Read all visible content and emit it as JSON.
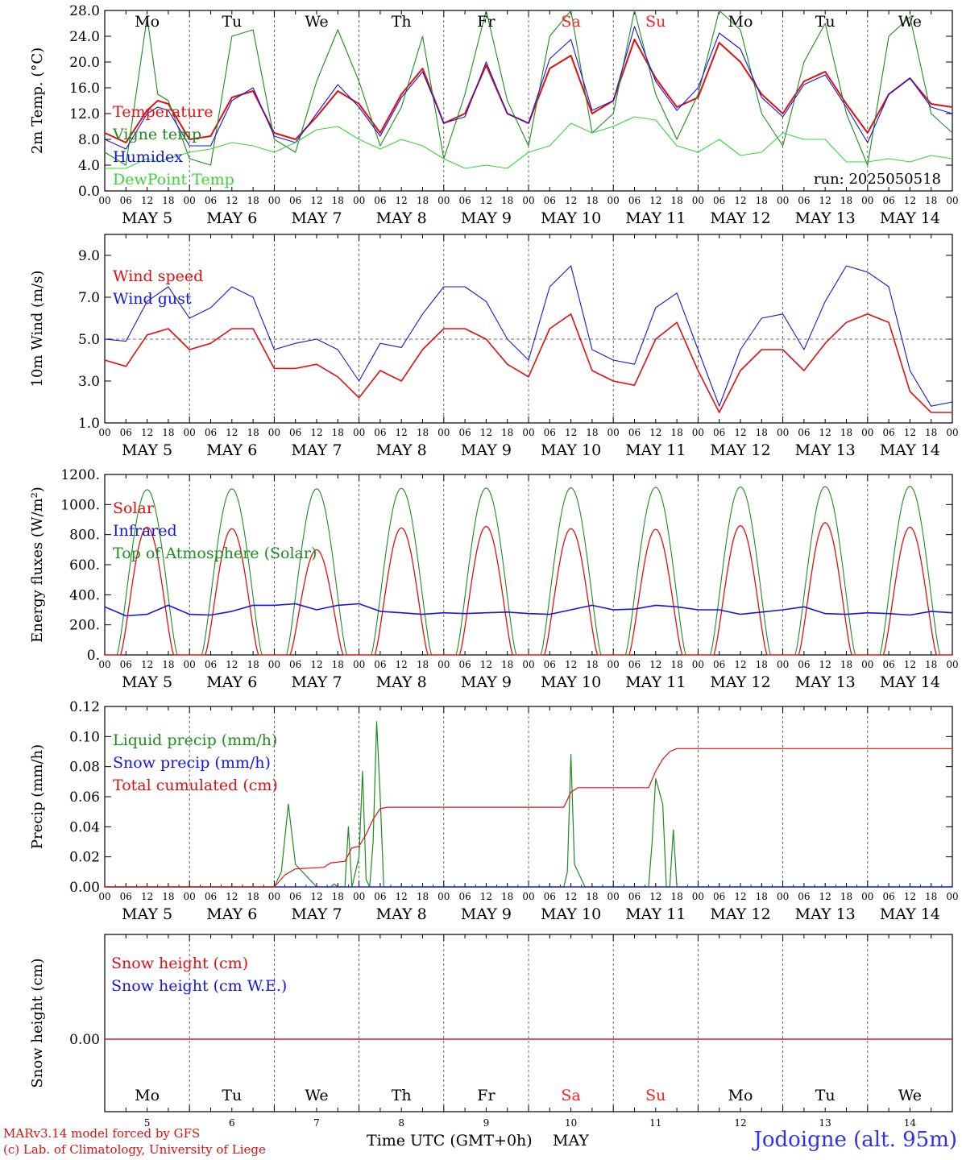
{
  "meta": {
    "run": "run: 2025050518",
    "days": [
      "Mo",
      "Tu",
      "We",
      "Th",
      "Fr",
      "Sa",
      "Su",
      "Mo",
      "Tu",
      "We"
    ],
    "weekend_color": "#ff2020",
    "hour_labels": [
      "00",
      "06",
      "12",
      "18"
    ],
    "date_labels": [
      "MAY  5",
      "MAY  6",
      "MAY  7",
      "MAY  8",
      "MAY  9",
      "MAY 10",
      "MAY 11",
      "MAY 12",
      "MAY 13",
      "MAY 14"
    ],
    "bottom_day_numbers": [
      "5",
      "6",
      "7",
      "8",
      "9",
      "10",
      "11",
      "12",
      "13",
      "14"
    ],
    "xlabel": "Time UTC (GMT+0h)",
    "xlabel_month": "MAY",
    "credit_line1": "MARv3.14 model forced by GFS",
    "credit_line2": "(c) Lab. of Climatology, University of Liege",
    "station": "Jodoigne (alt. 95m)"
  },
  "chart_data": [
    {
      "type": "line",
      "ylabel": "2m Temp. (°C)",
      "ylim": [
        0,
        28
      ],
      "yticks": [
        "0.0",
        "4.0",
        "8.0",
        "12.0",
        "16.0",
        "20.0",
        "24.0",
        "28.0"
      ],
      "x_hours": [
        0,
        6,
        12,
        15,
        18,
        24,
        30,
        36,
        42,
        48,
        54,
        60,
        66,
        72,
        78,
        84,
        90,
        96,
        102,
        108,
        114,
        120,
        126,
        132,
        138,
        144,
        150,
        156,
        162,
        168,
        174,
        180,
        186,
        192,
        198,
        204,
        210,
        216,
        222,
        228,
        234,
        240
      ],
      "series": [
        {
          "name": "Temperature",
          "color": "#e01010",
          "values": [
            9,
            7.5,
            12.5,
            14,
            13.5,
            8,
            8.5,
            14.5,
            15.5,
            9,
            8,
            11.5,
            15.5,
            13.5,
            9,
            15,
            19,
            10.5,
            12,
            19.5,
            12,
            10.5,
            19,
            21,
            12,
            14,
            23.5,
            17.5,
            13,
            14.5,
            23,
            20,
            15,
            12,
            17,
            18.5,
            13.5,
            9,
            15,
            17.5,
            13.5,
            13
          ]
        },
        {
          "name": "Vigne temp",
          "color": "#1e8c1e",
          "values": [
            6,
            4,
            27,
            15,
            14,
            5,
            4,
            24,
            25,
            8,
            6,
            17,
            25,
            17,
            7,
            13,
            24,
            5,
            15,
            28,
            14,
            7,
            24,
            28,
            9,
            12,
            30,
            15,
            8,
            15,
            29,
            25,
            12,
            7,
            20,
            26,
            12,
            4,
            24,
            27,
            12,
            9
          ]
        },
        {
          "name": "Humidex",
          "color": "#1515e0",
          "values": [
            8,
            6.5,
            12,
            13,
            12.5,
            7,
            7,
            14,
            16,
            8.5,
            7.5,
            12,
            16.5,
            13,
            8.5,
            14.5,
            18.5,
            10.5,
            11.5,
            20,
            12,
            10.5,
            20.5,
            23.5,
            12.5,
            14,
            25.5,
            17,
            12.5,
            16,
            24.5,
            22,
            14.5,
            11.5,
            16.5,
            18,
            13,
            7.5,
            15,
            17.5,
            13,
            12
          ]
        },
        {
          "name": "DewPoint Temp",
          "color": "#3ad43a",
          "values": [
            3.5,
            3.5,
            5,
            4.5,
            5,
            6,
            6.5,
            7.5,
            7,
            6,
            7.5,
            9.5,
            10,
            8,
            6.5,
            8,
            7,
            5,
            3.5,
            4,
            3.5,
            6,
            7,
            10.5,
            9,
            10,
            11.5,
            11,
            7,
            6,
            8,
            5.5,
            6,
            9,
            8,
            8,
            4.5,
            4.5,
            5,
            4.5,
            5.5,
            5
          ]
        }
      ]
    },
    {
      "type": "line",
      "ylabel": "10m Wind (m/s)",
      "ylim": [
        1,
        10
      ],
      "yticks": [
        "1.0",
        "3.0",
        "5.0",
        "7.0",
        "9.0"
      ],
      "reference_line": 5,
      "x_hours": [
        0,
        6,
        12,
        18,
        24,
        30,
        36,
        42,
        48,
        54,
        60,
        66,
        72,
        78,
        84,
        90,
        96,
        102,
        108,
        114,
        120,
        126,
        132,
        138,
        144,
        150,
        156,
        162,
        168,
        174,
        180,
        186,
        192,
        198,
        204,
        210,
        216,
        222,
        228,
        234,
        240
      ],
      "series": [
        {
          "name": "Wind speed",
          "color": "#e01010",
          "values": [
            4,
            3.7,
            5.2,
            5.5,
            4.5,
            4.8,
            5.5,
            5.5,
            3.6,
            3.6,
            3.8,
            3.2,
            2.2,
            3.5,
            3,
            4.5,
            5.5,
            5.5,
            5,
            3.8,
            3.2,
            5.5,
            6.2,
            3.5,
            3,
            2.8,
            5,
            5.8,
            3.5,
            1.5,
            3.5,
            4.5,
            4.5,
            3.5,
            4.8,
            5.8,
            6.2,
            5.8,
            2.5,
            1.5,
            1.5
          ]
        },
        {
          "name": "Wind gust",
          "color": "#1515e0",
          "values": [
            5,
            4.9,
            6.8,
            7.5,
            6,
            6.5,
            7.5,
            7,
            4.5,
            4.8,
            5,
            4.5,
            3,
            4.8,
            4.6,
            6.2,
            7.5,
            7.5,
            6.8,
            5,
            4,
            7.5,
            8.5,
            4.5,
            4,
            3.8,
            6.5,
            7.2,
            4.5,
            1.8,
            4.5,
            6,
            6.2,
            4.5,
            6.8,
            8.5,
            8.2,
            7.5,
            3.5,
            1.8,
            2
          ]
        }
      ]
    },
    {
      "type": "line",
      "ylabel": "Energy fluxes (W/m²)",
      "ylim": [
        0,
        1200
      ],
      "yticks": [
        "0.",
        "200.",
        "400.",
        "600.",
        "800.",
        "1000.",
        "1200."
      ],
      "x_hours": [
        0,
        6,
        12,
        18,
        24,
        30,
        36,
        42,
        48,
        54,
        60,
        66,
        72,
        78,
        84,
        90,
        96,
        102,
        108,
        114,
        120,
        126,
        132,
        138,
        144,
        150,
        156,
        162,
        168,
        174,
        180,
        186,
        192,
        198,
        204,
        210,
        216,
        222,
        228,
        234,
        240
      ],
      "series": [
        {
          "name": "Solar",
          "color": "#e01010",
          "peaks": [
            850,
            840,
            700,
            845,
            855,
            840,
            835,
            860,
            880,
            850
          ]
        },
        {
          "name": "Infrared",
          "color": "#1515e0",
          "values": [
            320,
            260,
            270,
            330,
            270,
            265,
            290,
            330,
            330,
            340,
            300,
            330,
            340,
            290,
            280,
            270,
            280,
            275,
            280,
            285,
            275,
            270,
            300,
            330,
            300,
            305,
            330,
            320,
            300,
            300,
            270,
            285,
            300,
            320,
            275,
            270,
            280,
            275,
            265,
            290,
            280
          ]
        },
        {
          "name": "Top of Atmosphere (Solar)",
          "color": "#1e8c1e",
          "peaks": [
            1100,
            1105,
            1105,
            1108,
            1110,
            1112,
            1115,
            1118,
            1120,
            1122
          ]
        }
      ]
    },
    {
      "type": "line",
      "ylabel": "Precip (mm/h)",
      "ylim": [
        0,
        0.12
      ],
      "yticks": [
        "0.00",
        "0.02",
        "0.04",
        "0.06",
        "0.08",
        "0.10",
        "0.12"
      ],
      "x_hours": [
        0,
        48,
        50,
        52,
        56,
        60,
        64,
        66,
        68,
        70,
        72,
        74,
        76,
        78,
        80,
        84,
        96,
        120,
        130,
        132,
        136,
        140,
        152,
        154,
        156,
        160,
        164,
        168,
        240
      ],
      "series": [
        {
          "name": "Liquid precip (mm/h)",
          "color": "#1e8c1e",
          "points": [
            [
              0,
              0
            ],
            [
              48,
              0
            ],
            [
              50,
              0.01
            ],
            [
              52,
              0.055
            ],
            [
              54,
              0.015
            ],
            [
              58,
              0.005
            ],
            [
              60,
              0
            ],
            [
              64,
              0
            ],
            [
              65,
              0.002
            ],
            [
              66,
              0
            ],
            [
              68,
              0
            ],
            [
              69,
              0.04
            ],
            [
              70,
              0
            ],
            [
              71,
              0.01
            ],
            [
              72,
              0.02
            ],
            [
              73,
              0.077
            ],
            [
              74,
              0.005
            ],
            [
              75,
              0
            ],
            [
              76,
              0.03
            ],
            [
              77,
              0.11
            ],
            [
              78,
              0.06
            ],
            [
              79,
              0
            ],
            [
              80,
              0
            ],
            [
              130,
              0
            ],
            [
              131,
              0.01
            ],
            [
              132,
              0.088
            ],
            [
              133,
              0.015
            ],
            [
              136,
              0
            ],
            [
              154,
              0
            ],
            [
              155,
              0.03
            ],
            [
              156,
              0.072
            ],
            [
              158,
              0.055
            ],
            [
              159,
              0
            ],
            [
              160,
              0
            ],
            [
              161,
              0.038
            ],
            [
              162,
              0
            ],
            [
              240,
              0
            ]
          ]
        },
        {
          "name": "Snow precip (mm/h)",
          "color": "#1515e0",
          "points": [
            [
              0,
              0
            ],
            [
              240,
              0
            ]
          ]
        },
        {
          "name": "Total cumulated (cm)",
          "color": "#e01010",
          "points": [
            [
              0,
              0
            ],
            [
              48,
              0
            ],
            [
              51,
              0.008
            ],
            [
              54,
              0.012
            ],
            [
              62,
              0.013
            ],
            [
              64,
              0.016
            ],
            [
              68,
              0.017
            ],
            [
              70,
              0.026
            ],
            [
              72,
              0.027
            ],
            [
              74,
              0.035
            ],
            [
              76,
              0.045
            ],
            [
              78,
              0.052
            ],
            [
              80,
              0.053
            ],
            [
              130,
              0.053
            ],
            [
              132,
              0.063
            ],
            [
              134,
              0.066
            ],
            [
              154,
              0.066
            ],
            [
              156,
              0.077
            ],
            [
              158,
              0.085
            ],
            [
              160,
              0.09
            ],
            [
              162,
              0.092
            ],
            [
              240,
              0.092
            ]
          ]
        }
      ]
    },
    {
      "type": "line",
      "ylabel": "Snow height (cm)",
      "yticks": [
        "0.00"
      ],
      "series": [
        {
          "name": "Snow height (cm)",
          "color": "#e01010",
          "values": [
            0,
            0
          ]
        },
        {
          "name": "Snow height (cm W.E.)",
          "color": "#1515e0",
          "values": [
            0,
            0
          ]
        }
      ]
    }
  ]
}
